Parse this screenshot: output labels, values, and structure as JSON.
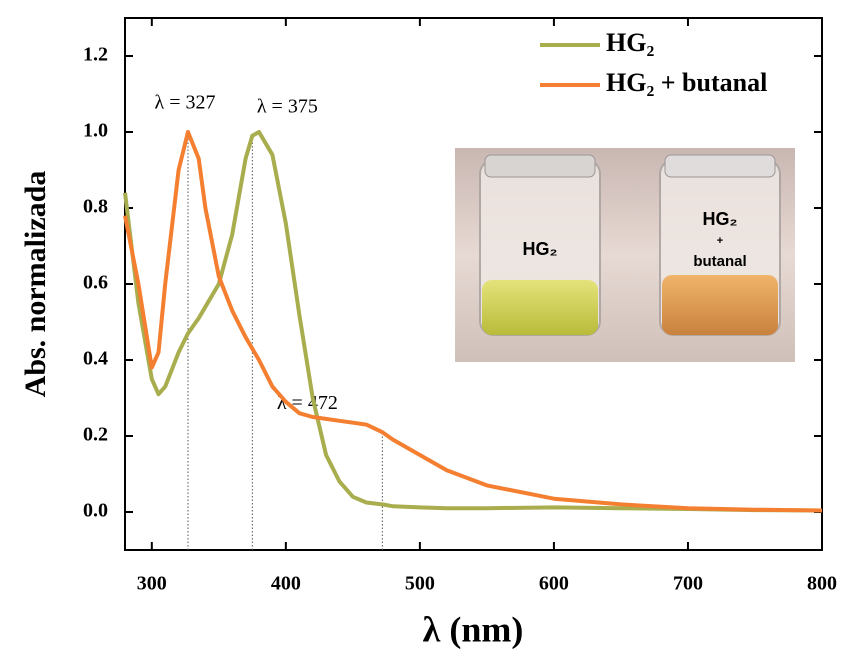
{
  "chart_data": {
    "type": "line",
    "xlabel": "λ (nm)",
    "ylabel": "Abs. normalizada",
    "x": [
      280,
      290,
      300,
      305,
      310,
      320,
      327,
      335,
      340,
      350,
      360,
      370,
      375,
      380,
      390,
      400,
      410,
      420,
      430,
      440,
      450,
      460,
      472,
      480,
      500,
      520,
      550,
      600,
      650,
      700,
      750,
      800
    ],
    "series": [
      {
        "name": "HG₂",
        "color": "#a8ad4e",
        "values": [
          0.84,
          0.55,
          0.35,
          0.31,
          0.33,
          0.42,
          0.47,
          0.51,
          0.54,
          0.6,
          0.73,
          0.93,
          0.99,
          1.0,
          0.94,
          0.76,
          0.52,
          0.3,
          0.15,
          0.08,
          0.04,
          0.025,
          0.02,
          0.015,
          0.012,
          0.01,
          0.01,
          0.012,
          0.01,
          0.008,
          0.005,
          0.004
        ]
      },
      {
        "name": "HG₂ + butanal",
        "color": "#f47f31",
        "values": [
          0.78,
          0.6,
          0.38,
          0.42,
          0.6,
          0.9,
          1.0,
          0.93,
          0.8,
          0.62,
          0.53,
          0.46,
          0.43,
          0.4,
          0.33,
          0.29,
          0.26,
          0.25,
          0.245,
          0.24,
          0.235,
          0.23,
          0.21,
          0.19,
          0.15,
          0.11,
          0.07,
          0.035,
          0.02,
          0.01,
          0.006,
          0.004
        ]
      }
    ],
    "xlim": [
      280,
      800
    ],
    "xticks": [
      300,
      400,
      500,
      600,
      700,
      800
    ],
    "ylim": [
      -0.1,
      1.3
    ],
    "yticks": [
      {
        "value": 0,
        "label": "0.0"
      },
      0.2,
      0.4,
      0.6,
      0.8,
      {
        "value": 1,
        "label": "1.0"
      },
      1.2
    ],
    "annotations": [
      {
        "label": "λ = 327",
        "x": 327
      },
      {
        "label": "λ = 375",
        "x": 375
      },
      {
        "label": "λ = 472",
        "x": 472
      }
    ],
    "inset_labels": [
      "HG₂",
      "HG₂",
      "+",
      "butanal"
    ]
  }
}
